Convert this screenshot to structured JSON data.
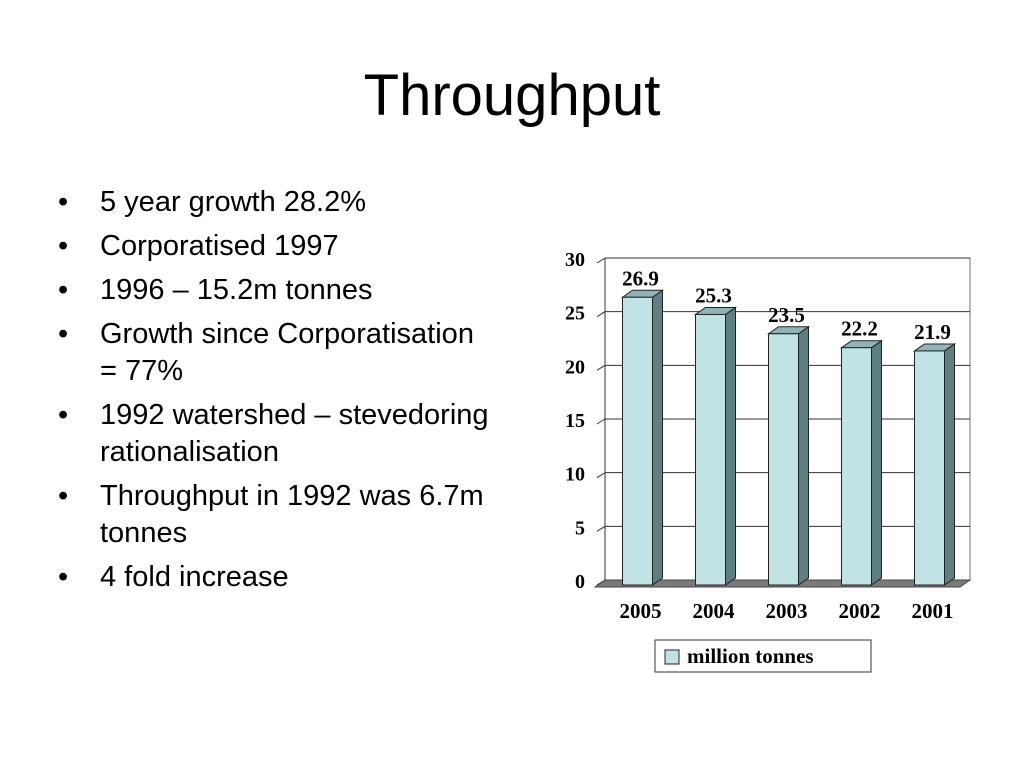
{
  "title": "Throughput",
  "bullets": [
    "5 year growth 28.2%",
    "Corporatised 1997",
    "1996 – 15.2m tonnes",
    "Growth since Corporatisation = 77%",
    "1992 watershed – stevedoring rationalisation",
    "Throughput in 1992 was 6.7m tonnes",
    "4 fold increase"
  ],
  "chart_data": {
    "type": "bar",
    "categories": [
      "2005",
      "2004",
      "2003",
      "2002",
      "2001"
    ],
    "series": [
      {
        "name": "million tonnes",
        "values": [
          26.9,
          25.3,
          23.5,
          22.2,
          21.9
        ]
      }
    ],
    "value_labels": [
      "26.9",
      "25.3",
      "23.5",
      "22.2",
      "21.9"
    ],
    "ylim": [
      0,
      30
    ],
    "yticks": [
      "0",
      "5",
      "10",
      "15",
      "20",
      "25",
      "30"
    ],
    "grid": true,
    "legend": "bottom",
    "colors": {
      "bar": "#c1e3e6",
      "bar_side": "#5f7f83",
      "bar_top": "#8fb3b7",
      "floor": "#7a7a7a"
    }
  }
}
